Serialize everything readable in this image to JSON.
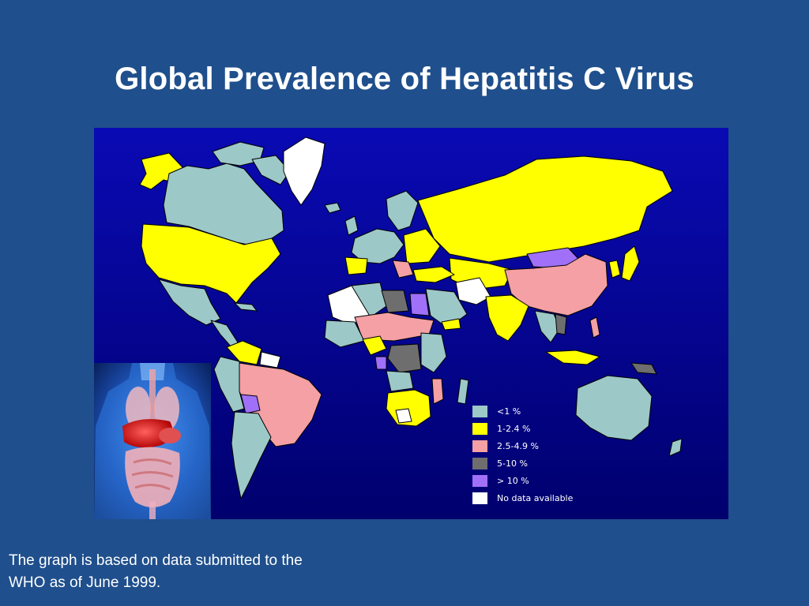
{
  "slide": {
    "title": "Global Prevalence of Hepatitis C Virus",
    "caption_lines": [
      "The graph is based on data submitted to the",
      "WHO as of June 1999."
    ]
  },
  "map": {
    "ocean_color": "#0a0ab0",
    "ocean_color_bottom": "#000070",
    "legend": [
      {
        "label": "<1 %",
        "color": "#9cc8c8"
      },
      {
        "label": "1-2.4 %",
        "color": "#ffff00"
      },
      {
        "label": "2.5-4.9 %",
        "color": "#f4a0a4"
      },
      {
        "label": "5-10 %",
        "color": "#6e6e6e"
      },
      {
        "label": "> 10 %",
        "color": "#a070f8"
      },
      {
        "label": "No data available",
        "color": "#ffffff"
      }
    ]
  },
  "inset_image": {
    "subject": "anatomy-torso-liver-illustration"
  }
}
